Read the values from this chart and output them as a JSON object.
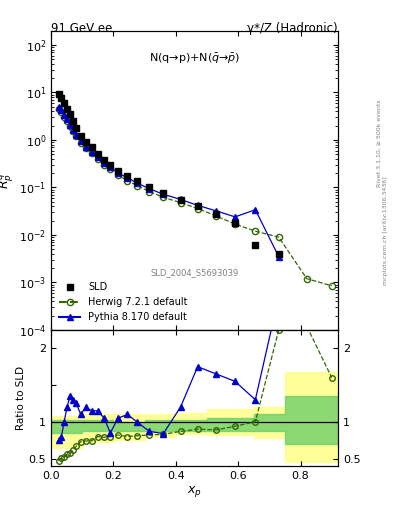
{
  "title_left": "91 GeV ee",
  "title_right": "γ*/Z (Hadronic)",
  "ylabel_main": "$R_p^q$",
  "ylabel_ratio": "Ratio to SLD",
  "xlabel": "$x_p$",
  "annotation": "N(q→p)+N($\\bar{q}$→$\\bar{p}$)",
  "dataset_label": "SLD_2004_S5693039",
  "right_label": "Rivet 3.1.10, ≥ 500k events",
  "right_label2": "mcplots.cern.ch [arXiv:1306.3436]",
  "sld_x": [
    0.024,
    0.033,
    0.042,
    0.051,
    0.061,
    0.071,
    0.081,
    0.095,
    0.111,
    0.13,
    0.15,
    0.17,
    0.19,
    0.215,
    0.245,
    0.275,
    0.315,
    0.36,
    0.415,
    0.47,
    0.53,
    0.59,
    0.655,
    0.73
  ],
  "sld_y": [
    9.5,
    7.5,
    6.0,
    4.5,
    3.5,
    2.5,
    1.8,
    1.2,
    0.9,
    0.7,
    0.5,
    0.38,
    0.3,
    0.22,
    0.175,
    0.135,
    0.1,
    0.075,
    0.055,
    0.04,
    0.028,
    0.018,
    0.006,
    0.004
  ],
  "sld_yerr": [
    0.5,
    0.4,
    0.3,
    0.2,
    0.18,
    0.13,
    0.09,
    0.06,
    0.05,
    0.04,
    0.025,
    0.02,
    0.015,
    0.012,
    0.009,
    0.007,
    0.005,
    0.004,
    0.003,
    0.002,
    0.0015,
    0.001,
    0.0004,
    0.0003
  ],
  "herwig_x": [
    0.024,
    0.033,
    0.042,
    0.051,
    0.061,
    0.071,
    0.081,
    0.095,
    0.111,
    0.13,
    0.15,
    0.17,
    0.19,
    0.215,
    0.245,
    0.275,
    0.315,
    0.36,
    0.415,
    0.47,
    0.53,
    0.59,
    0.655,
    0.73,
    0.82,
    0.9
  ],
  "herwig_y": [
    4.5,
    3.8,
    3.1,
    2.5,
    2.0,
    1.55,
    1.2,
    0.88,
    0.67,
    0.52,
    0.4,
    0.3,
    0.24,
    0.18,
    0.14,
    0.11,
    0.082,
    0.062,
    0.048,
    0.036,
    0.025,
    0.017,
    0.012,
    0.009,
    0.0012,
    0.00085
  ],
  "pythia_x": [
    0.024,
    0.033,
    0.042,
    0.051,
    0.061,
    0.071,
    0.081,
    0.095,
    0.111,
    0.13,
    0.15,
    0.17,
    0.19,
    0.215,
    0.245,
    0.275,
    0.315,
    0.36,
    0.415,
    0.47,
    0.53,
    0.59,
    0.655,
    0.73
  ],
  "pythia_y": [
    5.0,
    4.2,
    3.4,
    2.7,
    2.1,
    1.65,
    1.3,
    0.95,
    0.72,
    0.57,
    0.44,
    0.33,
    0.27,
    0.2,
    0.16,
    0.125,
    0.094,
    0.072,
    0.056,
    0.042,
    0.032,
    0.024,
    0.034,
    0.0035
  ],
  "herwig_ratio_x": [
    0.024,
    0.033,
    0.042,
    0.051,
    0.061,
    0.071,
    0.081,
    0.095,
    0.111,
    0.13,
    0.15,
    0.17,
    0.19,
    0.215,
    0.245,
    0.275,
    0.315,
    0.36,
    0.415,
    0.47,
    0.53,
    0.59,
    0.655,
    0.73,
    0.82,
    0.9
  ],
  "herwig_ratio_y": [
    0.47,
    0.51,
    0.52,
    0.56,
    0.57,
    0.62,
    0.67,
    0.73,
    0.74,
    0.74,
    0.8,
    0.79,
    0.8,
    0.82,
    0.8,
    0.81,
    0.82,
    0.83,
    0.87,
    0.9,
    0.89,
    0.94,
    1.0,
    2.25,
    2.3,
    1.6
  ],
  "pythia_ratio_x": [
    0.024,
    0.033,
    0.042,
    0.051,
    0.061,
    0.071,
    0.081,
    0.095,
    0.111,
    0.13,
    0.15,
    0.17,
    0.19,
    0.215,
    0.245,
    0.275,
    0.315,
    0.36,
    0.415,
    0.47,
    0.53,
    0.59,
    0.655,
    0.73
  ],
  "pythia_ratio_y": [
    0.75,
    0.8,
    1.0,
    1.2,
    1.35,
    1.3,
    1.25,
    1.1,
    1.2,
    1.15,
    1.15,
    1.05,
    0.85,
    1.05,
    1.1,
    1.0,
    0.87,
    0.84,
    1.2,
    1.75,
    1.65,
    1.55,
    1.3,
    2.7
  ],
  "green_band_x": [
    0.0,
    0.1,
    0.2,
    0.3,
    0.4,
    0.5,
    0.65,
    0.75,
    0.92
  ],
  "green_band_y_low": [
    0.85,
    0.87,
    0.88,
    0.88,
    0.87,
    0.88,
    0.87,
    0.7,
    0.7
  ],
  "green_band_y_high": [
    1.02,
    1.02,
    1.0,
    1.02,
    1.02,
    1.05,
    1.1,
    1.35,
    1.35
  ],
  "yellow_band_x": [
    0.0,
    0.1,
    0.2,
    0.3,
    0.4,
    0.5,
    0.65,
    0.75,
    0.92
  ],
  "yellow_band_y_low": [
    0.65,
    0.72,
    0.75,
    0.8,
    0.83,
    0.82,
    0.78,
    0.45,
    0.45
  ],
  "yellow_band_y_high": [
    1.08,
    1.1,
    1.1,
    1.1,
    1.12,
    1.18,
    1.2,
    1.68,
    1.68
  ],
  "sld_color": "#000000",
  "herwig_color": "#336600",
  "pythia_color": "#0000cc",
  "green_band_color": "#66cc66",
  "yellow_band_color": "#ffff99",
  "ylim_main": [
    0.0001,
    200.0
  ],
  "ylim_ratio": [
    0.4,
    2.25
  ],
  "xlim": [
    0.0,
    0.92
  ]
}
